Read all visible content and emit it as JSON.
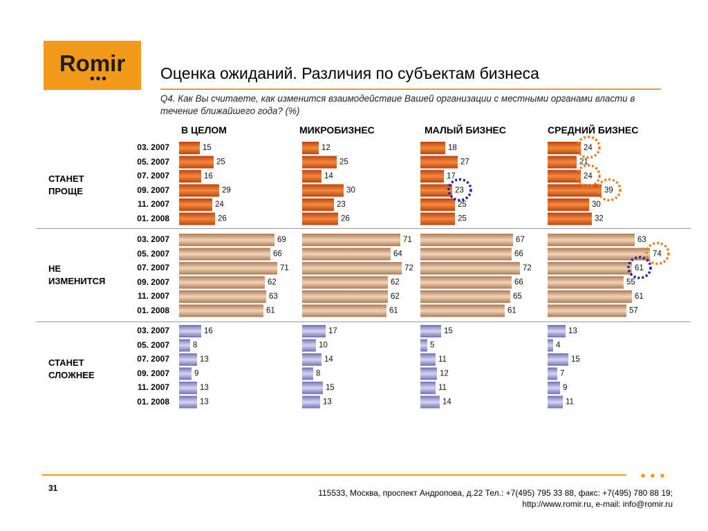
{
  "header": {
    "logo_text": "Romir",
    "title": "Оценка ожиданий. Различия по субъектам бизнеса",
    "question": "Q4. Как Вы считаете, как изменится взаимодействие Вашей организации с местными органами власти в течение ближайшего года? (%)"
  },
  "footer": {
    "page_number": "31",
    "address_line1": "115533, Москва, проспект Андропова, д.22   Тел.: +7(495) 795 33 88, факс: +7(495) 780 88 19;",
    "address_line2": "http://www.romir.ru, e-mail: info@romir.ru"
  },
  "colors": {
    "orange_accent": "#f39a1a",
    "better_bar": "#d9541a",
    "same_bar": "#c49270",
    "worse_bar": "#8f8fc9",
    "highlight_orange": "#f07d1c",
    "highlight_blue": "#1e1eb4"
  },
  "chart_data": {
    "type": "bar",
    "orientation": "horizontal",
    "columns": [
      "В ЦЕЛОМ",
      "МИКРОБИЗНЕС",
      "МАЛЫЙ БИЗНЕС",
      "СРЕДНИЙ БИЗНЕС"
    ],
    "dates": [
      "03. 2007",
      "05. 2007",
      "07. 2007",
      "09. 2007",
      "11. 2007",
      "01. 2008"
    ],
    "groups": [
      {
        "label": "СТАНЕТ\nПРОЩЕ",
        "color": "#d9541a",
        "values": [
          [
            15,
            25,
            16,
            29,
            24,
            26
          ],
          [
            12,
            25,
            14,
            30,
            23,
            26
          ],
          [
            18,
            27,
            17,
            23,
            25,
            25
          ],
          [
            24,
            21,
            24,
            39,
            30,
            32
          ]
        ]
      },
      {
        "label": "НЕ\nИЗМЕНИТСЯ",
        "color": "#c49270",
        "values": [
          [
            69,
            66,
            71,
            62,
            63,
            61
          ],
          [
            71,
            64,
            72,
            62,
            62,
            61
          ],
          [
            67,
            66,
            72,
            66,
            65,
            61
          ],
          [
            63,
            74,
            61,
            55,
            61,
            57
          ]
        ]
      },
      {
        "label": "СТАНЕТ\nСЛОЖНЕЕ",
        "color": "#8f8fc9",
        "values": [
          [
            16,
            8,
            13,
            9,
            13,
            13
          ],
          [
            17,
            10,
            14,
            8,
            15,
            13
          ],
          [
            15,
            5,
            11,
            12,
            11,
            14
          ],
          [
            13,
            4,
            15,
            7,
            9,
            11
          ]
        ]
      }
    ],
    "highlights": [
      {
        "group": 0,
        "column": 3,
        "row": 0,
        "color": "orange"
      },
      {
        "group": 0,
        "column": 3,
        "row": 2,
        "color": "orange"
      },
      {
        "group": 0,
        "column": 3,
        "row": 3,
        "color": "orange"
      },
      {
        "group": 0,
        "column": 2,
        "row": 3,
        "color": "blue"
      },
      {
        "group": 1,
        "column": 3,
        "row": 1,
        "color": "orange"
      },
      {
        "group": 1,
        "column": 3,
        "row": 2,
        "color": "blue"
      }
    ]
  }
}
